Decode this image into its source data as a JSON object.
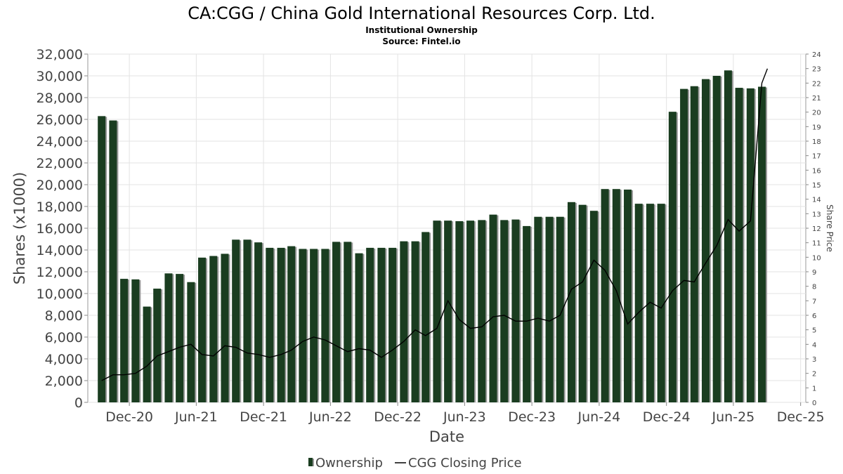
{
  "chart_data": {
    "type": "bar",
    "title": "CA:CGG / China Gold International Resources Corp. Ltd.",
    "subtitle": "Institutional Ownership",
    "source": "Source: Fintel.io",
    "xlabel": "Date",
    "ylabel": "Shares (x1000)",
    "y2label": "Share Price",
    "ylim": [
      0,
      32000
    ],
    "y2lim": [
      0,
      24
    ],
    "xlim": [
      "2020-08-10",
      "2025-12-15"
    ],
    "y_ticks": [
      "0",
      "2,000",
      "4,000",
      "6,000",
      "8,000",
      "10,000",
      "12,000",
      "14,000",
      "16,000",
      "18,000",
      "20,000",
      "22,000",
      "24,000",
      "26,000",
      "28,000",
      "30,000",
      "32,000"
    ],
    "y2_ticks": [
      "0",
      "1",
      "2",
      "3",
      "4",
      "5",
      "6",
      "7",
      "8",
      "9",
      "10",
      "11",
      "12",
      "13",
      "14",
      "15",
      "16",
      "17",
      "18",
      "19",
      "20",
      "21",
      "22",
      "23",
      "24"
    ],
    "x_ticks": [
      {
        "label": "Dec-20",
        "date": "2020-12-01"
      },
      {
        "label": "Jun-21",
        "date": "2021-06-01"
      },
      {
        "label": "Dec-21",
        "date": "2021-12-01"
      },
      {
        "label": "Jun-22",
        "date": "2022-06-01"
      },
      {
        "label": "Dec-22",
        "date": "2022-12-01"
      },
      {
        "label": "Jun-23",
        "date": "2023-06-01"
      },
      {
        "label": "Dec-23",
        "date": "2023-12-01"
      },
      {
        "label": "Jun-24",
        "date": "2024-06-01"
      },
      {
        "label": "Dec-24",
        "date": "2024-12-01"
      },
      {
        "label": "Jun-25",
        "date": "2025-06-01"
      },
      {
        "label": "Dec-25",
        "date": "2025-12-01"
      }
    ],
    "grid": true,
    "legend_position": "bottom",
    "series": [
      {
        "name": "Ownership",
        "type": "bar",
        "color": "#1a3d20",
        "values": [
          {
            "date": "2020-09-30",
            "value": 26300
          },
          {
            "date": "2020-10-31",
            "value": 25900
          },
          {
            "date": "2020-11-30",
            "value": 11350
          },
          {
            "date": "2020-12-31",
            "value": 11300
          },
          {
            "date": "2021-01-31",
            "value": 8800
          },
          {
            "date": "2021-02-28",
            "value": 10450
          },
          {
            "date": "2021-03-31",
            "value": 11850
          },
          {
            "date": "2021-04-30",
            "value": 11800
          },
          {
            "date": "2021-05-31",
            "value": 11050
          },
          {
            "date": "2021-06-30",
            "value": 13300
          },
          {
            "date": "2021-07-31",
            "value": 13450
          },
          {
            "date": "2021-08-31",
            "value": 13650
          },
          {
            "date": "2021-09-30",
            "value": 14950
          },
          {
            "date": "2021-10-31",
            "value": 14950
          },
          {
            "date": "2021-11-30",
            "value": 14700
          },
          {
            "date": "2021-12-31",
            "value": 14200
          },
          {
            "date": "2022-01-31",
            "value": 14200
          },
          {
            "date": "2022-02-28",
            "value": 14350
          },
          {
            "date": "2022-03-31",
            "value": 14100
          },
          {
            "date": "2022-04-30",
            "value": 14100
          },
          {
            "date": "2022-05-31",
            "value": 14100
          },
          {
            "date": "2022-06-30",
            "value": 14750
          },
          {
            "date": "2022-07-31",
            "value": 14750
          },
          {
            "date": "2022-08-31",
            "value": 13700
          },
          {
            "date": "2022-09-30",
            "value": 14200
          },
          {
            "date": "2022-10-31",
            "value": 14200
          },
          {
            "date": "2022-11-30",
            "value": 14200
          },
          {
            "date": "2022-12-31",
            "value": 14800
          },
          {
            "date": "2023-01-31",
            "value": 14800
          },
          {
            "date": "2023-02-28",
            "value": 15650
          },
          {
            "date": "2023-03-31",
            "value": 16700
          },
          {
            "date": "2023-04-30",
            "value": 16700
          },
          {
            "date": "2023-05-31",
            "value": 16650
          },
          {
            "date": "2023-06-30",
            "value": 16700
          },
          {
            "date": "2023-07-31",
            "value": 16750
          },
          {
            "date": "2023-08-31",
            "value": 17250
          },
          {
            "date": "2023-09-30",
            "value": 16750
          },
          {
            "date": "2023-10-31",
            "value": 16800
          },
          {
            "date": "2023-11-30",
            "value": 16200
          },
          {
            "date": "2023-12-31",
            "value": 17050
          },
          {
            "date": "2024-01-31",
            "value": 17050
          },
          {
            "date": "2024-02-29",
            "value": 17050
          },
          {
            "date": "2024-03-31",
            "value": 18400
          },
          {
            "date": "2024-04-30",
            "value": 18150
          },
          {
            "date": "2024-05-31",
            "value": 17600
          },
          {
            "date": "2024-06-30",
            "value": 19600
          },
          {
            "date": "2024-07-31",
            "value": 19600
          },
          {
            "date": "2024-08-31",
            "value": 19550
          },
          {
            "date": "2024-09-30",
            "value": 18250
          },
          {
            "date": "2024-10-31",
            "value": 18250
          },
          {
            "date": "2024-11-30",
            "value": 18250
          },
          {
            "date": "2024-12-31",
            "value": 26700
          },
          {
            "date": "2025-01-31",
            "value": 28800
          },
          {
            "date": "2025-02-28",
            "value": 29050
          },
          {
            "date": "2025-03-31",
            "value": 29700
          },
          {
            "date": "2025-04-30",
            "value": 30000
          },
          {
            "date": "2025-05-31",
            "value": 30500
          },
          {
            "date": "2025-06-30",
            "value": 28900
          },
          {
            "date": "2025-07-31",
            "value": 28850
          },
          {
            "date": "2025-08-31",
            "value": 29000
          }
        ]
      },
      {
        "name": "CGG Closing Price",
        "type": "line",
        "axis": "right",
        "color": "#000000",
        "values": [
          {
            "date": "2020-09-30",
            "value": 1.5
          },
          {
            "date": "2020-10-31",
            "value": 1.9
          },
          {
            "date": "2020-11-30",
            "value": 1.9
          },
          {
            "date": "2020-12-31",
            "value": 2.0
          },
          {
            "date": "2021-01-31",
            "value": 2.5
          },
          {
            "date": "2021-02-28",
            "value": 3.2
          },
          {
            "date": "2021-03-31",
            "value": 3.5
          },
          {
            "date": "2021-04-30",
            "value": 3.8
          },
          {
            "date": "2021-05-31",
            "value": 4.0
          },
          {
            "date": "2021-06-30",
            "value": 3.3
          },
          {
            "date": "2021-07-31",
            "value": 3.2
          },
          {
            "date": "2021-08-31",
            "value": 3.9
          },
          {
            "date": "2021-09-30",
            "value": 3.8
          },
          {
            "date": "2021-10-31",
            "value": 3.4
          },
          {
            "date": "2021-11-30",
            "value": 3.3
          },
          {
            "date": "2021-12-31",
            "value": 3.1
          },
          {
            "date": "2022-01-31",
            "value": 3.3
          },
          {
            "date": "2022-02-28",
            "value": 3.6
          },
          {
            "date": "2022-03-31",
            "value": 4.2
          },
          {
            "date": "2022-04-30",
            "value": 4.5
          },
          {
            "date": "2022-05-31",
            "value": 4.3
          },
          {
            "date": "2022-06-30",
            "value": 3.9
          },
          {
            "date": "2022-07-31",
            "value": 3.5
          },
          {
            "date": "2022-08-31",
            "value": 3.7
          },
          {
            "date": "2022-09-30",
            "value": 3.6
          },
          {
            "date": "2022-10-31",
            "value": 3.1
          },
          {
            "date": "2022-11-30",
            "value": 3.6
          },
          {
            "date": "2022-12-31",
            "value": 4.2
          },
          {
            "date": "2023-01-31",
            "value": 5.0
          },
          {
            "date": "2023-02-28",
            "value": 4.6
          },
          {
            "date": "2023-03-31",
            "value": 5.1
          },
          {
            "date": "2023-04-30",
            "value": 7.0
          },
          {
            "date": "2023-05-31",
            "value": 5.7
          },
          {
            "date": "2023-06-30",
            "value": 5.1
          },
          {
            "date": "2023-07-31",
            "value": 5.2
          },
          {
            "date": "2023-08-31",
            "value": 5.9
          },
          {
            "date": "2023-09-30",
            "value": 6.0
          },
          {
            "date": "2023-10-31",
            "value": 5.6
          },
          {
            "date": "2023-11-30",
            "value": 5.6
          },
          {
            "date": "2023-12-31",
            "value": 5.8
          },
          {
            "date": "2024-01-31",
            "value": 5.6
          },
          {
            "date": "2024-02-29",
            "value": 6.0
          },
          {
            "date": "2024-03-31",
            "value": 7.8
          },
          {
            "date": "2024-04-30",
            "value": 8.3
          },
          {
            "date": "2024-05-31",
            "value": 9.8
          },
          {
            "date": "2024-06-30",
            "value": 9.1
          },
          {
            "date": "2024-07-31",
            "value": 7.7
          },
          {
            "date": "2024-08-31",
            "value": 5.4
          },
          {
            "date": "2024-09-30",
            "value": 6.2
          },
          {
            "date": "2024-10-31",
            "value": 6.9
          },
          {
            "date": "2024-11-30",
            "value": 6.5
          },
          {
            "date": "2024-12-31",
            "value": 7.7
          },
          {
            "date": "2025-01-31",
            "value": 8.4
          },
          {
            "date": "2025-02-28",
            "value": 8.3
          },
          {
            "date": "2025-03-31",
            "value": 9.6
          },
          {
            "date": "2025-04-30",
            "value": 10.8
          },
          {
            "date": "2025-05-31",
            "value": 12.6
          },
          {
            "date": "2025-06-30",
            "value": 11.8
          },
          {
            "date": "2025-07-31",
            "value": 12.5
          },
          {
            "date": "2025-08-31",
            "value": 22.0
          },
          {
            "date": "2025-09-15",
            "value": 23.0
          }
        ]
      }
    ]
  }
}
